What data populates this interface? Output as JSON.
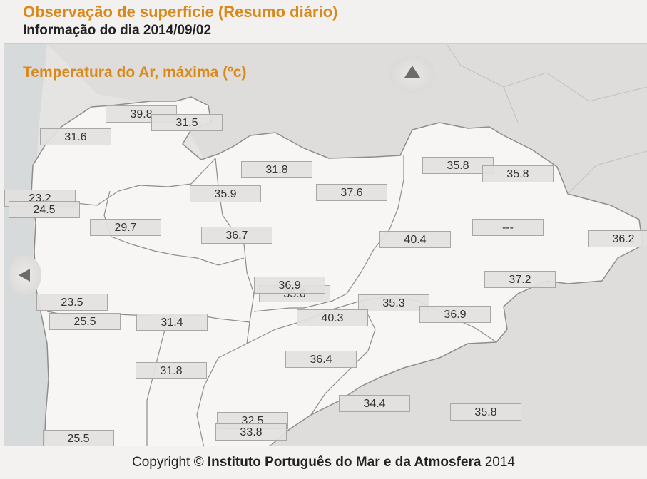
{
  "header": {
    "title": "Observação de superfície (Resumo diário)",
    "subtitle": "Informação do dia 2014/09/02"
  },
  "map": {
    "heading": "Temperatura do Ar, máxima (ºc)",
    "nav_up_icon": "chevron-up-icon",
    "nav_left_icon": "chevron-left-icon",
    "stations": [
      {
        "value": "39.8"
      },
      {
        "value": "31.5"
      },
      {
        "value": "31.6"
      },
      {
        "value": "23.2"
      },
      {
        "value": "24.5"
      },
      {
        "value": "31.8"
      },
      {
        "value": "35.8"
      },
      {
        "value": "35.8"
      },
      {
        "value": "35.9"
      },
      {
        "value": "37.6"
      },
      {
        "value": "29.7"
      },
      {
        "value": "36.7"
      },
      {
        "value": "40.4"
      },
      {
        "value": "---"
      },
      {
        "value": "36.2"
      },
      {
        "value": "37.2"
      },
      {
        "value": "35.6"
      },
      {
        "value": "36.9"
      },
      {
        "value": "23.5"
      },
      {
        "value": "35.3"
      },
      {
        "value": "25.5"
      },
      {
        "value": "31.4"
      },
      {
        "value": "40.3"
      },
      {
        "value": "36.9"
      },
      {
        "value": "36.4"
      },
      {
        "value": "31.8"
      },
      {
        "value": "34.4"
      },
      {
        "value": "35.8"
      },
      {
        "value": "32.5"
      },
      {
        "value": "33.8"
      },
      {
        "value": "25.5"
      }
    ]
  },
  "footer": {
    "prefix": "Copyright ©",
    "organization": "Instituto Português do Mar e da Atmosfera",
    "year": "2014"
  },
  "colors": {
    "accent": "#d9891a",
    "land": "#f7f6f5",
    "sea": "#e6e4e2",
    "border": "#9a9896"
  }
}
